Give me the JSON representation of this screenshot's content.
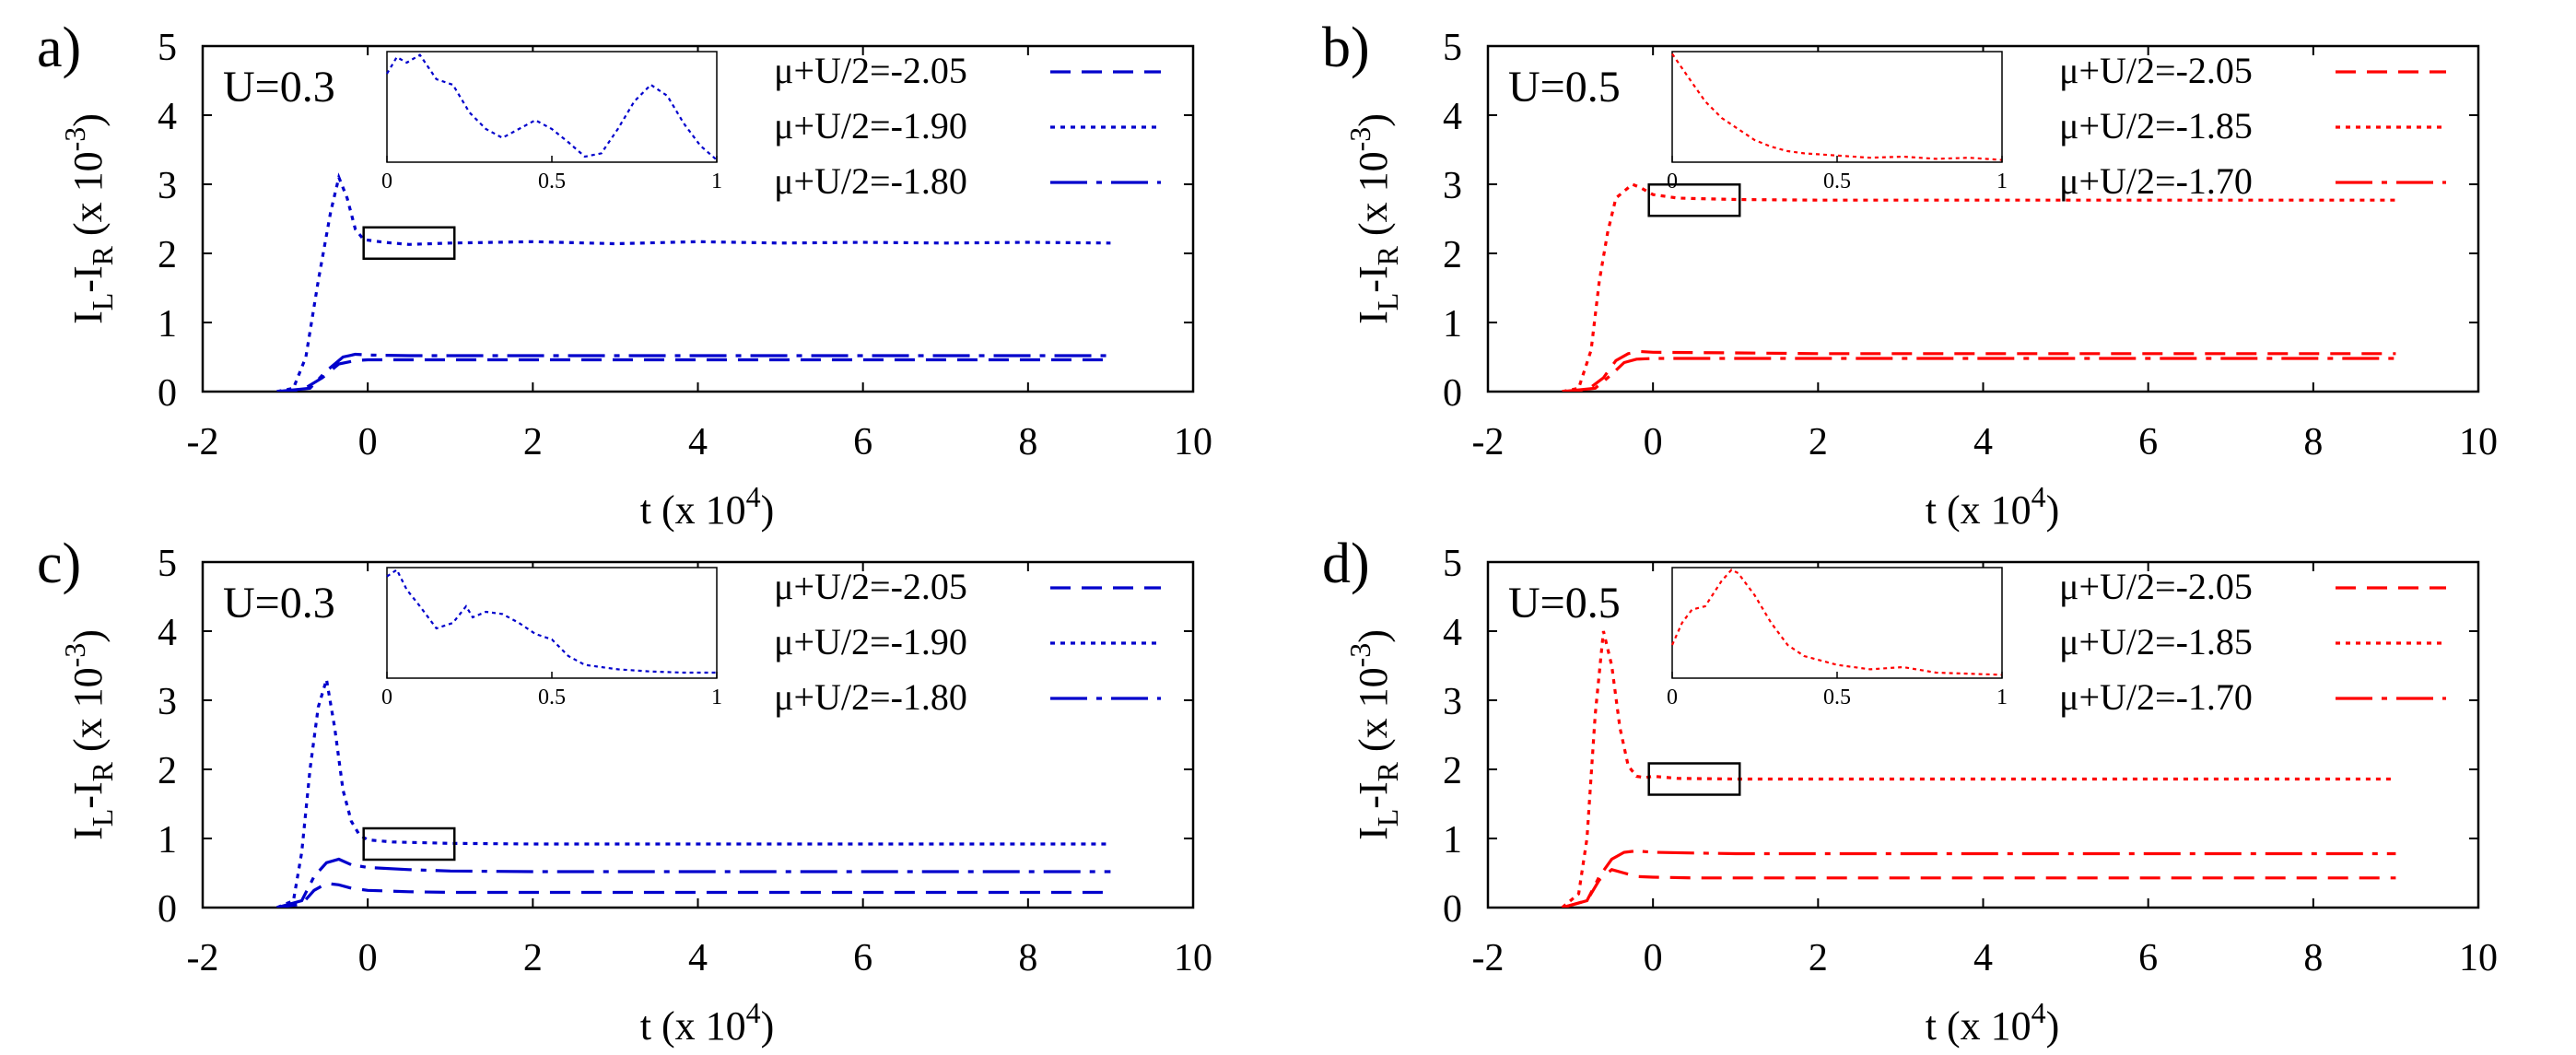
{
  "figure": {
    "xlabel_main": "t (x 10",
    "xlabel_exp": "4",
    "xlabel_close": ")",
    "ylabel_I1": "I",
    "ylabel_sub1": "L",
    "ylabel_mid": "-I",
    "ylabel_sub2": "R",
    "ylabel_paren": " (x 10",
    "ylabel_exp": "-3",
    "ylabel_close": ")"
  },
  "chart_data": [
    {
      "panel": "a)",
      "type": "line",
      "annotation": "U=0.3",
      "color": "#0000cc",
      "xlim": [
        -2,
        10
      ],
      "ylim": [
        0,
        5
      ],
      "xticks": [
        "-2",
        "0",
        "2",
        "4",
        "6",
        "8",
        "10"
      ],
      "yticks": [
        "0",
        "1",
        "2",
        "3",
        "4",
        "5"
      ],
      "inset_xticks": [
        "0",
        "0.5",
        "1"
      ],
      "series": [
        {
          "name": "μ+U/2=-2.05",
          "style": "dashed",
          "x": [
            -1.1,
            -0.8,
            -0.55,
            -0.35,
            -0.15,
            0,
            0.5,
            1,
            2,
            4,
            6,
            8,
            9
          ],
          "y": [
            0,
            0.02,
            0.2,
            0.4,
            0.45,
            0.46,
            0.46,
            0.46,
            0.46,
            0.46,
            0.46,
            0.46,
            0.46
          ]
        },
        {
          "name": "μ+U/2=-1.90",
          "style": "dotted",
          "x": [
            -1.1,
            -0.9,
            -0.75,
            -0.6,
            -0.45,
            -0.35,
            -0.25,
            -0.15,
            -0.05,
            0.2,
            0.5,
            1,
            2,
            3,
            4,
            5,
            6,
            7,
            8,
            9
          ],
          "y": [
            0,
            0.05,
            0.5,
            1.6,
            2.6,
            3.1,
            2.8,
            2.35,
            2.2,
            2.16,
            2.13,
            2.15,
            2.17,
            2.14,
            2.17,
            2.15,
            2.16,
            2.15,
            2.16,
            2.15
          ]
        },
        {
          "name": "μ+U/2=-1.80",
          "style": "dashdot",
          "x": [
            -1.1,
            -0.7,
            -0.5,
            -0.3,
            -0.15,
            0,
            0.5,
            1,
            2,
            4,
            6,
            8,
            9
          ],
          "y": [
            0,
            0.05,
            0.3,
            0.5,
            0.54,
            0.53,
            0.52,
            0.52,
            0.52,
            0.52,
            0.52,
            0.52,
            0.52
          ]
        }
      ],
      "inset": {
        "x": [
          0,
          0.03,
          0.06,
          0.1,
          0.15,
          0.2,
          0.25,
          0.3,
          0.35,
          0.4,
          0.45,
          0.5,
          0.55,
          0.6,
          0.65,
          0.7,
          0.75,
          0.8,
          0.85,
          0.9,
          0.95,
          1
        ],
        "y": [
          0.8,
          0.95,
          0.9,
          0.97,
          0.75,
          0.7,
          0.45,
          0.3,
          0.22,
          0.3,
          0.38,
          0.3,
          0.18,
          0.05,
          0.08,
          0.3,
          0.55,
          0.7,
          0.6,
          0.35,
          0.15,
          0.02
        ]
      }
    },
    {
      "panel": "b)",
      "type": "line",
      "annotation": "U=0.5",
      "color": "#ff0000",
      "xlim": [
        -2,
        10
      ],
      "ylim": [
        0,
        5
      ],
      "xticks": [
        "-2",
        "0",
        "2",
        "4",
        "6",
        "8",
        "10"
      ],
      "yticks": [
        "0",
        "1",
        "2",
        "3",
        "4",
        "5"
      ],
      "inset_xticks": [
        "0",
        "0.5",
        "1"
      ],
      "series": [
        {
          "name": "μ+U/2=-2.05",
          "style": "dashed",
          "x": [
            -1.1,
            -0.8,
            -0.6,
            -0.45,
            -0.3,
            -0.15,
            0,
            1,
            2,
            4,
            6,
            8,
            9
          ],
          "y": [
            0,
            0.02,
            0.2,
            0.45,
            0.55,
            0.58,
            0.57,
            0.56,
            0.55,
            0.55,
            0.55,
            0.55,
            0.55
          ]
        },
        {
          "name": "μ+U/2=-1.85",
          "style": "dotted",
          "x": [
            -1.1,
            -0.9,
            -0.75,
            -0.65,
            -0.55,
            -0.45,
            -0.35,
            -0.25,
            -0.15,
            0,
            0.3,
            1,
            2,
            4,
            6,
            8,
            9
          ],
          "y": [
            0,
            0.05,
            0.6,
            1.6,
            2.3,
            2.8,
            2.9,
            3.0,
            2.95,
            2.85,
            2.8,
            2.78,
            2.77,
            2.77,
            2.77,
            2.77,
            2.77
          ]
        },
        {
          "name": "μ+U/2=-1.70",
          "style": "dashdot",
          "x": [
            -1.1,
            -0.7,
            -0.5,
            -0.35,
            -0.2,
            0,
            1,
            2,
            4,
            6,
            8,
            9
          ],
          "y": [
            0,
            0.05,
            0.25,
            0.42,
            0.47,
            0.48,
            0.48,
            0.48,
            0.48,
            0.48,
            0.48,
            0.48
          ]
        }
      ],
      "inset": {
        "x": [
          0,
          0.03,
          0.06,
          0.1,
          0.15,
          0.2,
          0.25,
          0.3,
          0.35,
          0.4,
          0.5,
          0.6,
          0.7,
          0.8,
          0.9,
          1
        ],
        "y": [
          0.98,
          0.85,
          0.72,
          0.55,
          0.4,
          0.3,
          0.2,
          0.14,
          0.1,
          0.08,
          0.06,
          0.04,
          0.05,
          0.03,
          0.04,
          0.02
        ]
      }
    },
    {
      "panel": "c)",
      "type": "line",
      "annotation": "U=0.3",
      "color": "#0000cc",
      "xlim": [
        -2,
        10
      ],
      "ylim": [
        0,
        5
      ],
      "xticks": [
        "-2",
        "0",
        "2",
        "4",
        "6",
        "8",
        "10"
      ],
      "yticks": [
        "0",
        "1",
        "2",
        "3",
        "4",
        "5"
      ],
      "inset_xticks": [
        "0",
        "0.5",
        "1"
      ],
      "series": [
        {
          "name": "μ+U/2=-2.05",
          "style": "dashed",
          "x": [
            -1.1,
            -0.8,
            -0.65,
            -0.5,
            -0.35,
            -0.2,
            0,
            0.5,
            1,
            2,
            4,
            6,
            8,
            9
          ],
          "y": [
            0,
            0.05,
            0.25,
            0.35,
            0.33,
            0.28,
            0.25,
            0.23,
            0.22,
            0.22,
            0.22,
            0.22,
            0.22,
            0.22
          ]
        },
        {
          "name": "μ+U/2=-1.90",
          "style": "dotted",
          "x": [
            -1.1,
            -0.9,
            -0.8,
            -0.7,
            -0.6,
            -0.5,
            -0.4,
            -0.3,
            -0.2,
            -0.1,
            0,
            0.3,
            1,
            2,
            4,
            6,
            8,
            9
          ],
          "y": [
            0,
            0.1,
            0.8,
            2.0,
            2.9,
            3.3,
            2.6,
            1.7,
            1.25,
            1.05,
            0.98,
            0.95,
            0.93,
            0.92,
            0.92,
            0.92,
            0.92,
            0.92
          ]
        },
        {
          "name": "μ+U/2=-1.80",
          "style": "dashdot",
          "x": [
            -1.1,
            -0.8,
            -0.65,
            -0.5,
            -0.35,
            -0.2,
            0,
            0.5,
            1,
            2,
            4,
            6,
            8,
            9
          ],
          "y": [
            0,
            0.1,
            0.45,
            0.65,
            0.7,
            0.62,
            0.58,
            0.55,
            0.53,
            0.52,
            0.52,
            0.52,
            0.52,
            0.52
          ]
        }
      ],
      "inset": {
        "x": [
          0,
          0.03,
          0.06,
          0.1,
          0.15,
          0.2,
          0.24,
          0.26,
          0.3,
          0.35,
          0.4,
          0.45,
          0.5,
          0.55,
          0.6,
          0.7,
          0.8,
          0.9,
          1
        ],
        "y": [
          0.92,
          0.98,
          0.8,
          0.65,
          0.45,
          0.5,
          0.65,
          0.55,
          0.6,
          0.58,
          0.5,
          0.4,
          0.35,
          0.2,
          0.12,
          0.08,
          0.06,
          0.05,
          0.05
        ]
      }
    },
    {
      "panel": "d)",
      "type": "line",
      "annotation": "U=0.5",
      "color": "#ff0000",
      "xlim": [
        -2,
        10
      ],
      "ylim": [
        0,
        5
      ],
      "xticks": [
        "-2",
        "0",
        "2",
        "4",
        "6",
        "8",
        "10"
      ],
      "yticks": [
        "0",
        "1",
        "2",
        "3",
        "4",
        "5"
      ],
      "inset_xticks": [
        "0",
        "0.5",
        "1"
      ],
      "series": [
        {
          "name": "μ+U/2=-2.05",
          "style": "dashed",
          "x": [
            -1.1,
            -0.8,
            -0.65,
            -0.5,
            -0.35,
            -0.2,
            0,
            0.5,
            1,
            2,
            4,
            6,
            8,
            9
          ],
          "y": [
            0,
            0.1,
            0.4,
            0.55,
            0.5,
            0.45,
            0.44,
            0.43,
            0.43,
            0.43,
            0.43,
            0.43,
            0.43,
            0.43
          ]
        },
        {
          "name": "μ+U/2=-1.85",
          "style": "dotted",
          "x": [
            -1.1,
            -0.9,
            -0.8,
            -0.7,
            -0.6,
            -0.5,
            -0.4,
            -0.3,
            -0.2,
            -0.1,
            0,
            0.3,
            1,
            2,
            4,
            6,
            8,
            9
          ],
          "y": [
            0,
            0.2,
            1.0,
            2.8,
            4.0,
            3.5,
            2.6,
            2.05,
            1.9,
            1.88,
            1.9,
            1.87,
            1.86,
            1.86,
            1.86,
            1.86,
            1.86,
            1.86
          ]
        },
        {
          "name": "μ+U/2=-1.70",
          "style": "dashdot",
          "x": [
            -1.1,
            -0.8,
            -0.65,
            -0.5,
            -0.35,
            -0.2,
            0,
            0.5,
            1,
            2,
            4,
            6,
            8,
            9
          ],
          "y": [
            0,
            0.1,
            0.45,
            0.7,
            0.8,
            0.82,
            0.8,
            0.79,
            0.78,
            0.78,
            0.78,
            0.78,
            0.78,
            0.78
          ]
        }
      ],
      "inset": {
        "x": [
          0,
          0.03,
          0.06,
          0.1,
          0.15,
          0.18,
          0.2,
          0.25,
          0.3,
          0.35,
          0.4,
          0.5,
          0.6,
          0.7,
          0.8,
          0.9,
          1
        ],
        "y": [
          0.3,
          0.5,
          0.62,
          0.65,
          0.88,
          0.98,
          0.95,
          0.75,
          0.5,
          0.3,
          0.2,
          0.12,
          0.08,
          0.1,
          0.05,
          0.04,
          0.03
        ]
      }
    }
  ]
}
